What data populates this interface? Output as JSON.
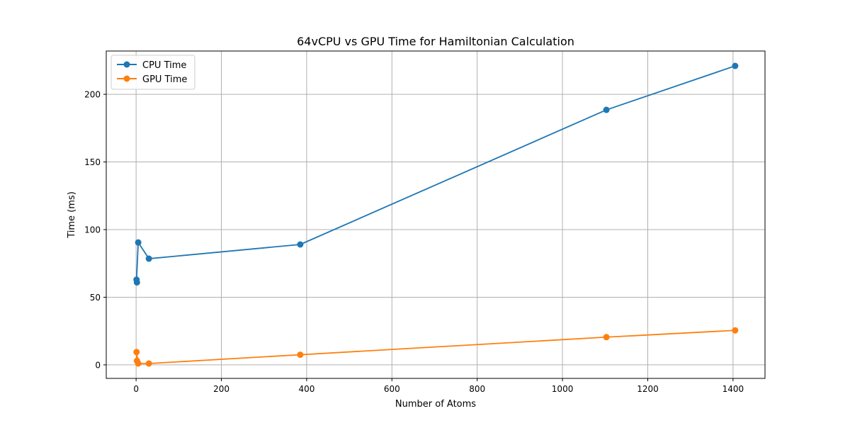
{
  "chart_data": {
    "type": "line",
    "title": "64vCPU vs GPU Time for Hamiltonian Calculation",
    "xlabel": "Number of Atoms",
    "ylabel": "Time (ms)",
    "xlim": [
      -70,
      1475
    ],
    "ylim": [
      -10,
      232
    ],
    "xticks": [
      0,
      200,
      400,
      600,
      800,
      1000,
      1200,
      1400
    ],
    "yticks": [
      0,
      50,
      100,
      150,
      200
    ],
    "grid": true,
    "legend_position": "top-left",
    "series": [
      {
        "name": "CPU Time",
        "color": "#1f77b4",
        "marker": "circle",
        "x": [
          2,
          1,
          5,
          30,
          385,
          1103,
          1405
        ],
        "y": [
          61,
          63,
          90.5,
          78.5,
          89,
          188.5,
          221
        ]
      },
      {
        "name": "GPU Time",
        "color": "#ff7f0e",
        "marker": "circle",
        "x": [
          2,
          1,
          5,
          30,
          385,
          1103,
          1405
        ],
        "y": [
          3,
          9.5,
          1,
          1,
          7.5,
          20.5,
          25.5
        ]
      }
    ]
  }
}
